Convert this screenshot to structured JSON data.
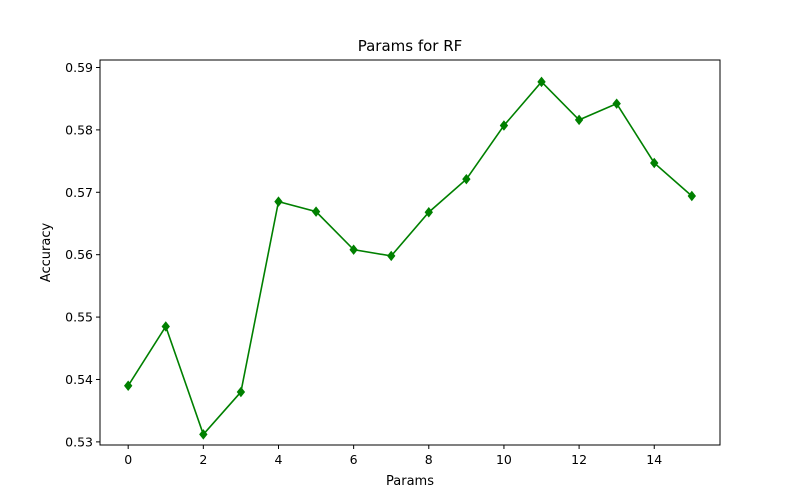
{
  "chart_data": {
    "type": "line",
    "title": "Params for RF",
    "xlabel": "Params",
    "ylabel": "Accuracy",
    "xlim": [
      -0.75,
      15.75
    ],
    "ylim": [
      0.5295,
      0.5912
    ],
    "x_ticks": [
      0,
      2,
      4,
      6,
      8,
      10,
      12,
      14
    ],
    "y_ticks": [
      0.53,
      0.54,
      0.55,
      0.56,
      0.57,
      0.58,
      0.59
    ],
    "grid": false,
    "legend": "none",
    "series": [
      {
        "color": "#008000",
        "marker": "diamond",
        "x": [
          0,
          1,
          2,
          3,
          4,
          5,
          6,
          7,
          8,
          9,
          10,
          11,
          12,
          13,
          14,
          15
        ],
        "values": [
          0.539,
          0.5485,
          0.5312,
          0.538,
          0.5685,
          0.5669,
          0.5608,
          0.5598,
          0.5668,
          0.5721,
          0.5807,
          0.5877,
          0.5816,
          0.5842,
          0.5747,
          0.5694
        ]
      }
    ]
  }
}
